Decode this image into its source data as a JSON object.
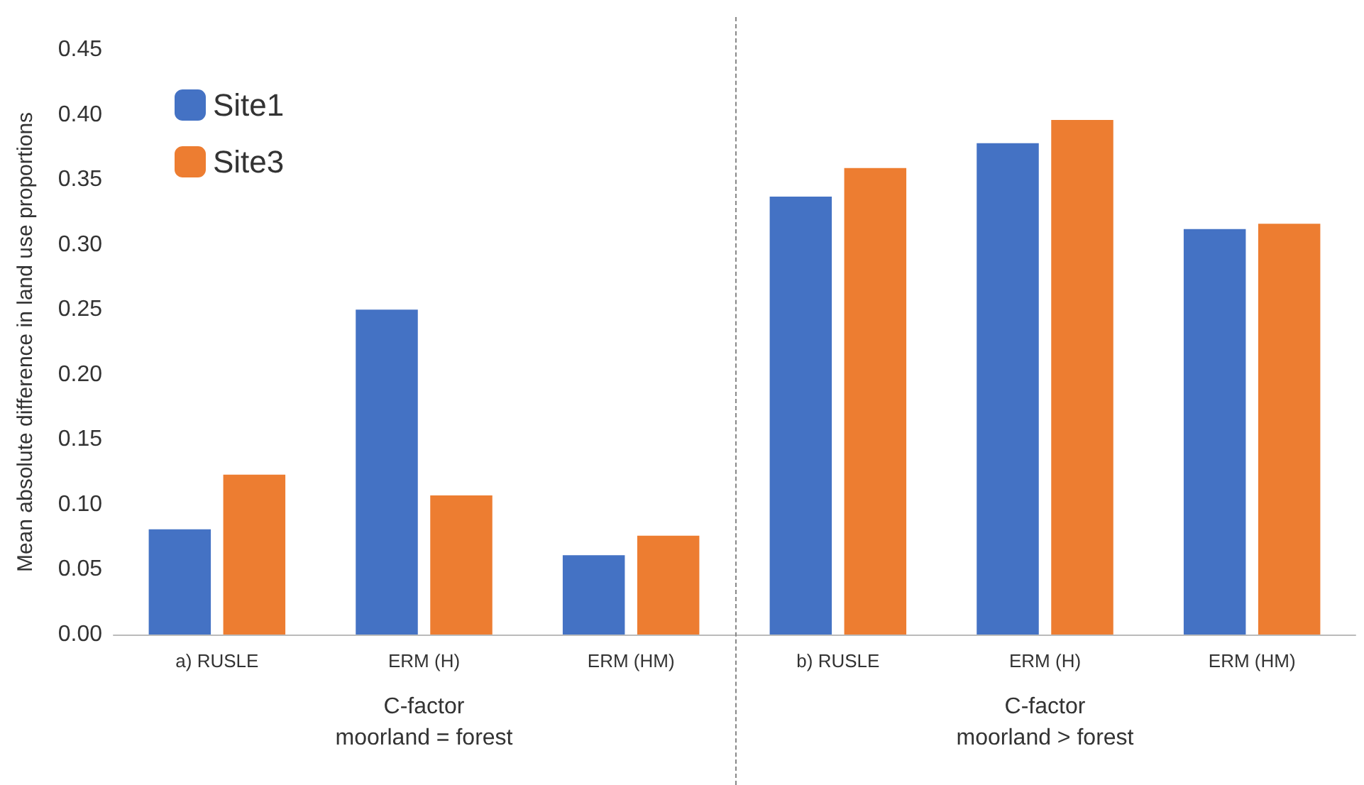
{
  "chart_data": {
    "type": "bar",
    "ylabel": "Mean absolute difference in land use proportions",
    "categories": [
      "a) RUSLE",
      "ERM (H)",
      "ERM (HM)",
      "b) RUSLE",
      "ERM (H)",
      "ERM (HM)"
    ],
    "series": [
      {
        "name": "Site1",
        "color": "#4472c4",
        "values": [
          0.081,
          0.25,
          0.061,
          0.337,
          0.378,
          0.312
        ]
      },
      {
        "name": "Site3",
        "color": "#ed7d31",
        "values": [
          0.123,
          0.107,
          0.076,
          0.359,
          0.396,
          0.316
        ]
      }
    ],
    "ylim": [
      0,
      0.45
    ],
    "yticks": [
      {
        "value": 0,
        "label": "0.00"
      },
      {
        "value": 0.05,
        "label": "0.05"
      },
      {
        "value": 0.1,
        "label": "0.10"
      },
      {
        "value": 0.15,
        "label": "0.15"
      },
      {
        "value": 0.2,
        "label": "0.20"
      },
      {
        "value": 0.25,
        "label": "0.25"
      },
      {
        "value": 0.3,
        "label": "0.30"
      },
      {
        "value": 0.35,
        "label": "0.35"
      },
      {
        "value": 0.4,
        "label": "0.40"
      },
      {
        "value": 0.45,
        "label": "0.45"
      }
    ],
    "annotations": [
      "C-factor\nmoorland = forest",
      "C-factor\nmoorland > forest"
    ],
    "grid": false,
    "legend": "top left"
  }
}
